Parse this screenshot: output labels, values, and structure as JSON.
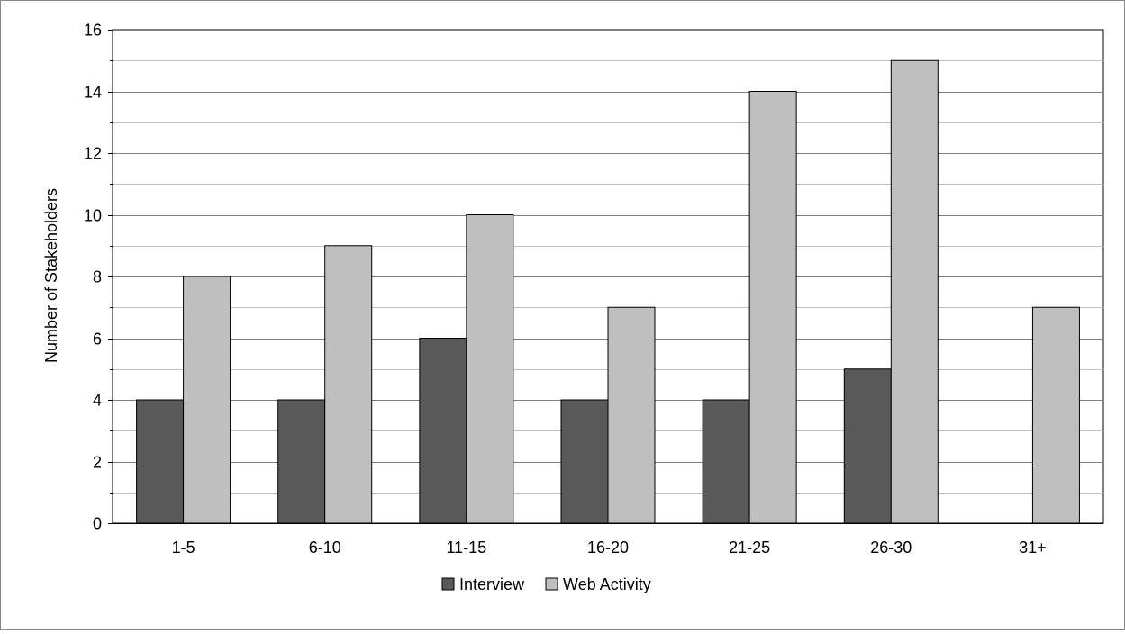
{
  "chart_data": {
    "type": "bar",
    "title": "",
    "xlabel": "",
    "ylabel": "Number of Stakeholders",
    "categories": [
      "1-5",
      "6-10",
      "11-15",
      "16-20",
      "21-25",
      "26-30",
      "31+"
    ],
    "series": [
      {
        "name": "Interview",
        "values": [
          4,
          4,
          6,
          4,
          4,
          5,
          0
        ],
        "color": "#595959"
      },
      {
        "name": "Web Activity",
        "values": [
          8,
          9,
          10,
          7,
          14,
          15,
          7
        ],
        "color": "#bfbfbf"
      }
    ],
    "ylim": [
      0,
      16
    ],
    "yticks": [
      "0",
      "2",
      "4",
      "6",
      "8",
      "10",
      "12",
      "14",
      "16"
    ],
    "grid": true,
    "legend": "bottom-center"
  }
}
